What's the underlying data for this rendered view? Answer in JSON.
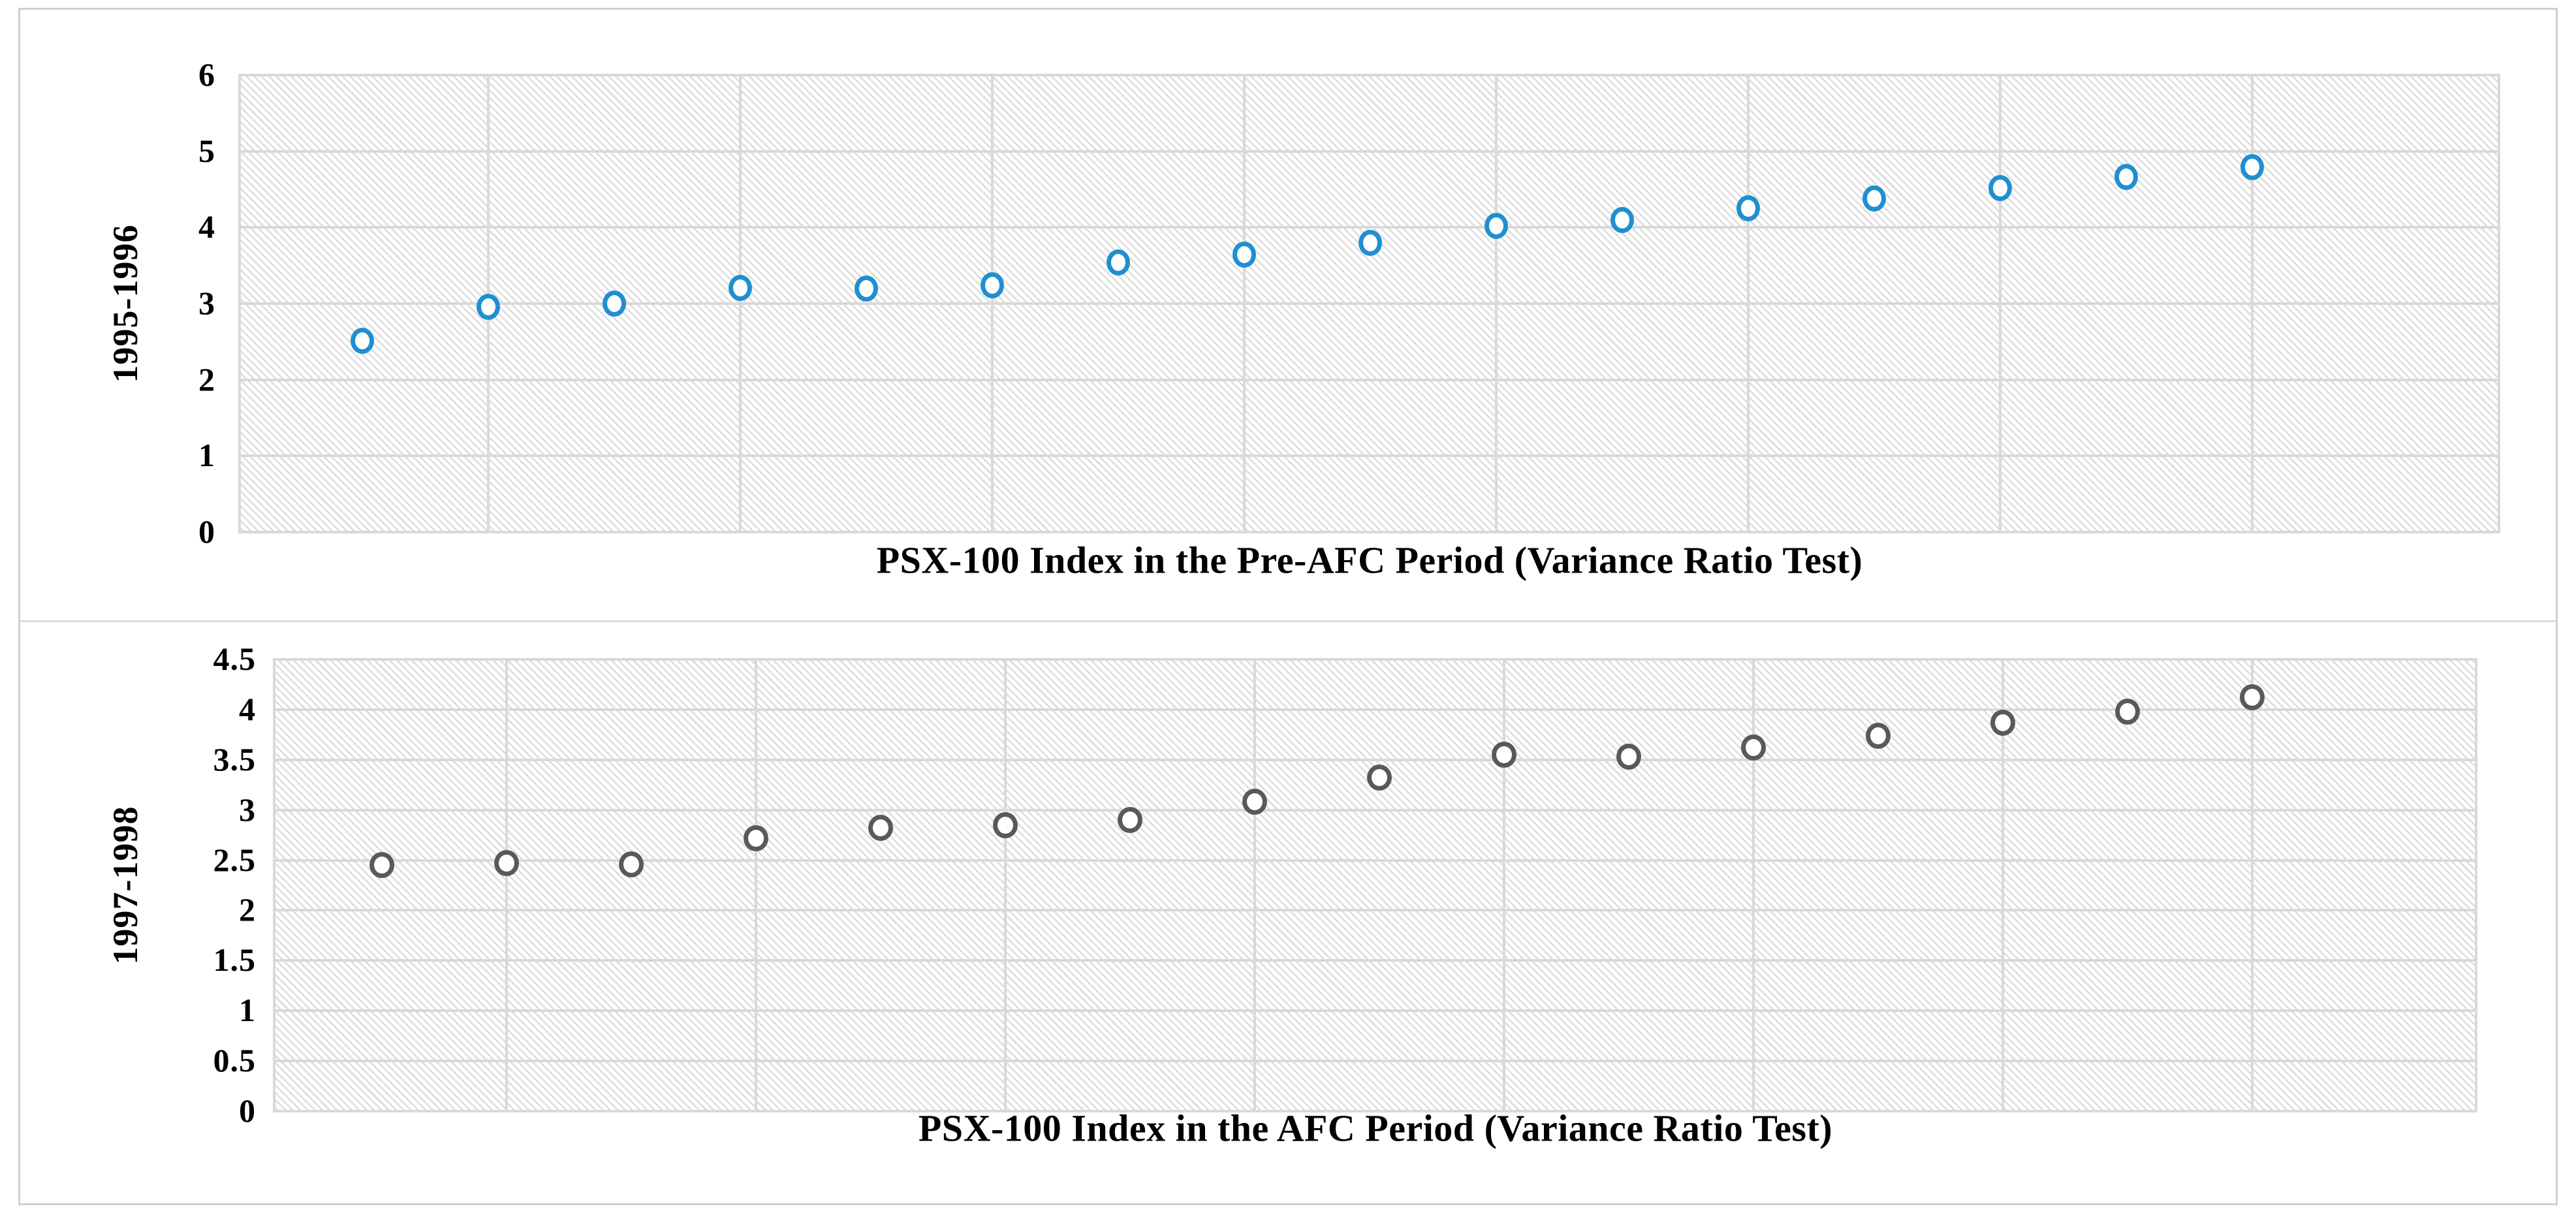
{
  "figure": {
    "background_color": "#ffffff",
    "border_color": "#cfcfcf",
    "gridline_color": "#d9d9d9",
    "plot_fill": "diagonal-hatch-light-gray"
  },
  "chart_data": [
    {
      "type": "scatter",
      "title": "PSX-100 Index in the Pre-AFC Period (Variance Ratio Test)",
      "ylabel": "1995-1996",
      "xlabel": "",
      "ylim": [
        0,
        6
      ],
      "y_ticks": [
        0,
        1,
        2,
        3,
        4,
        5,
        6
      ],
      "x_tick_labels": [],
      "grid": true,
      "legend": "none",
      "marker": {
        "shape": "open-circle",
        "color": "#1f8fd0"
      },
      "values": [
        2.51,
        2.96,
        3.0,
        3.21,
        3.2,
        3.24,
        3.54,
        3.64,
        3.8,
        4.02,
        4.1,
        4.25,
        4.38,
        4.52,
        4.66,
        4.79
      ]
    },
    {
      "type": "scatter",
      "title": "PSX-100 Index in the AFC Period (Variance Ratio Test)",
      "ylabel": "1997-1998",
      "xlabel": "",
      "ylim": [
        0,
        4.5
      ],
      "y_ticks": [
        0,
        0.5,
        1,
        1.5,
        2,
        2.5,
        3,
        3.5,
        4,
        4.5
      ],
      "x_tick_labels": [],
      "grid": true,
      "legend": "none",
      "marker": {
        "shape": "open-circle",
        "color": "#595959"
      },
      "values": [
        2.45,
        2.47,
        2.46,
        2.72,
        2.82,
        2.85,
        2.9,
        3.08,
        3.32,
        3.55,
        3.53,
        3.62,
        3.74,
        3.87,
        3.98,
        4.12
      ]
    }
  ]
}
